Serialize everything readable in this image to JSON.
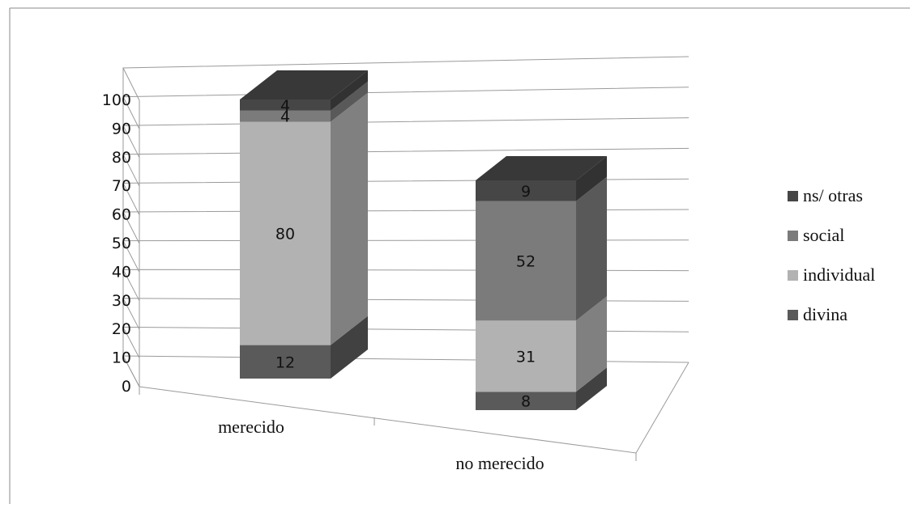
{
  "chart_data": {
    "type": "bar",
    "stacked": true,
    "style": "3d",
    "categories": [
      "merecido",
      "no merecido"
    ],
    "series": [
      {
        "name": "divina",
        "values": [
          12,
          8
        ],
        "color": "#5a5a5a"
      },
      {
        "name": "individual",
        "values": [
          80,
          31
        ],
        "color": "#b2b2b2"
      },
      {
        "name": "social",
        "values": [
          4,
          52
        ],
        "color": "#7b7b7b"
      },
      {
        "name": "ns/ otras",
        "values": [
          4,
          9
        ],
        "color": "#464646"
      }
    ],
    "yticks": [
      "0",
      "10",
      "20",
      "30",
      "40",
      "50",
      "60",
      "70",
      "80",
      "90",
      "100"
    ],
    "ylim": [
      0,
      100
    ],
    "grid": true,
    "legend_position": "right",
    "legend_order": [
      "ns/ otras",
      "social",
      "individual",
      "divina"
    ]
  }
}
